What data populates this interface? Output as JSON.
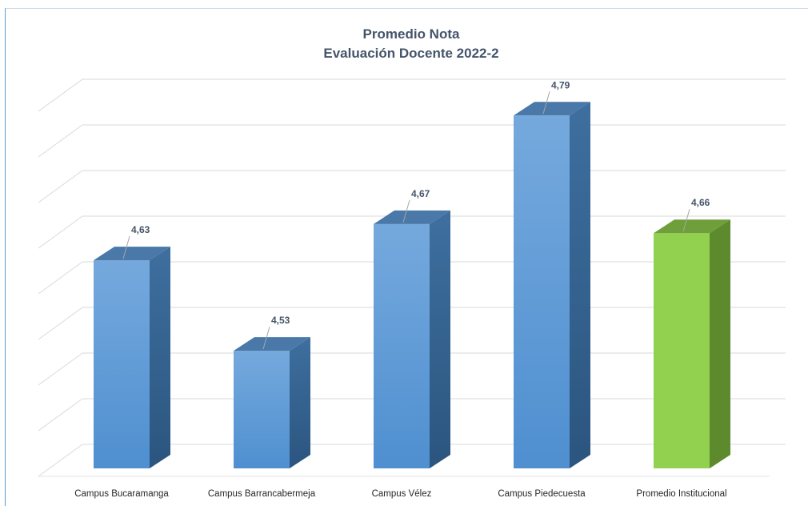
{
  "chart_data": {
    "type": "bar",
    "style": "3d-column",
    "title": "Promedio Nota",
    "subtitle": "Evaluación Docente 2022-2",
    "categories": [
      "Campus Bucaramanga",
      "Campus Barrancabermeja",
      "Campus Vélez",
      "Campus Piedecuesta",
      "Promedio Institucional"
    ],
    "values": [
      4.63,
      4.53,
      4.67,
      4.79,
      4.66
    ],
    "value_labels": [
      "4,63",
      "4,53",
      "4,67",
      "4,79",
      "4,66"
    ],
    "ylim": [
      4.4,
      4.8
    ],
    "grid": true,
    "legend": "none",
    "colors": {
      "campus_front": "#5b9bd5",
      "campus_front_light": "#6fa8dc",
      "campus_side": "#2e5b86",
      "campus_top": "#4a78a8",
      "institutional_front": "#92d050",
      "institutional_side": "#5e8a2e",
      "institutional_top": "#6f9f3a",
      "grid": "#d9d9d9",
      "text": "#44546a"
    }
  }
}
